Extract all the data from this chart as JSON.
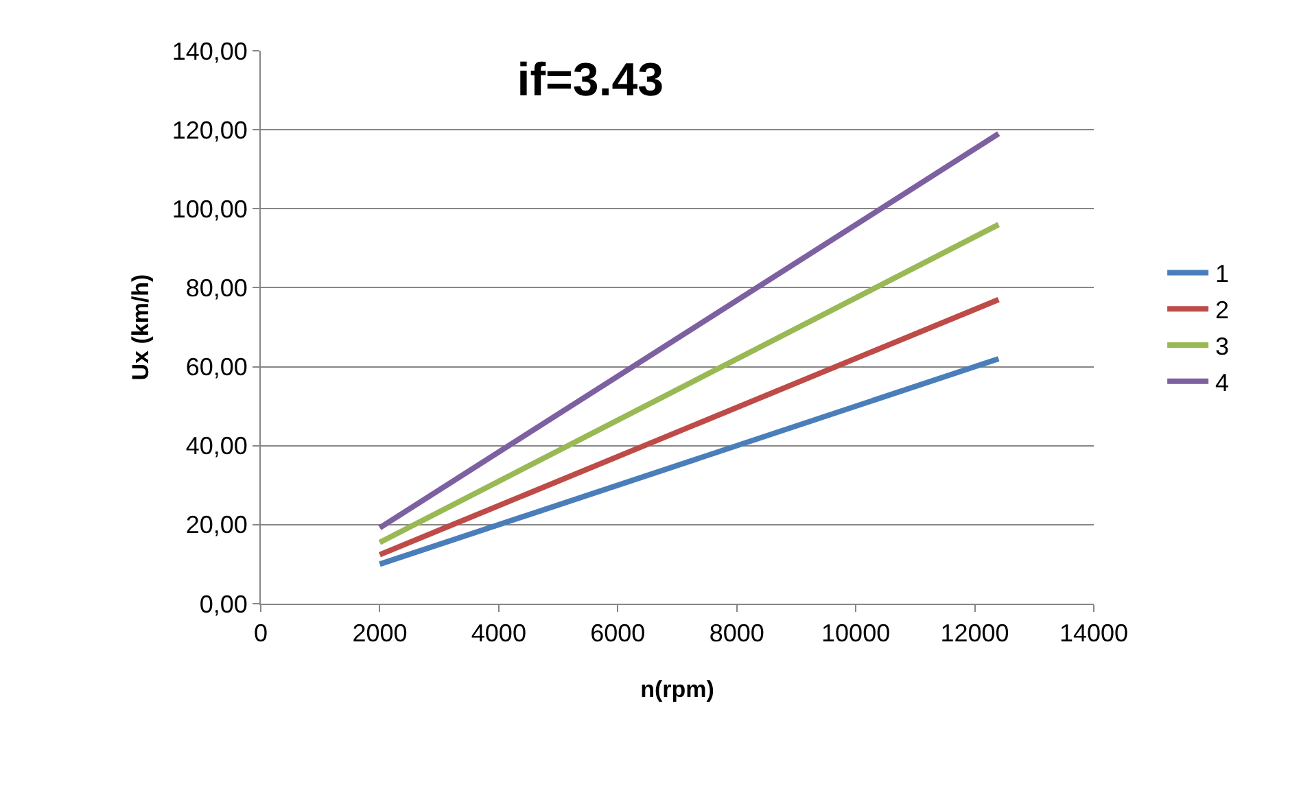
{
  "chart_data": {
    "type": "line",
    "title": "if=3.43",
    "xlabel": "n(rpm)",
    "ylabel": "Ux (km/h)",
    "x": [
      2000,
      12400
    ],
    "series": [
      {
        "name": "1",
        "color": "#4a7ebb",
        "values": [
          10,
          62
        ]
      },
      {
        "name": "2",
        "color": "#be4b48",
        "values": [
          12.4,
          77
        ]
      },
      {
        "name": "3",
        "color": "#98b954",
        "values": [
          15.5,
          96
        ]
      },
      {
        "name": "4",
        "color": "#7d60a0",
        "values": [
          19.2,
          119
        ]
      }
    ],
    "xlim": [
      0,
      14000
    ],
    "xticks": [
      0,
      2000,
      4000,
      6000,
      8000,
      10000,
      12000,
      14000
    ],
    "ylim": [
      0,
      140
    ],
    "yticks": [
      {
        "value": 0,
        "label": "0,00"
      },
      {
        "value": 20,
        "label": "20,00"
      },
      {
        "value": 40,
        "label": "40,00"
      },
      {
        "value": 60,
        "label": "60,00"
      },
      {
        "value": 80,
        "label": "80,00"
      },
      {
        "value": 100,
        "label": "100,00"
      },
      {
        "value": 120,
        "label": "120,00"
      },
      {
        "value": 140,
        "label": "140,00"
      }
    ],
    "grid": "y",
    "legend": "right",
    "marker": "none",
    "line_style": "solid"
  }
}
